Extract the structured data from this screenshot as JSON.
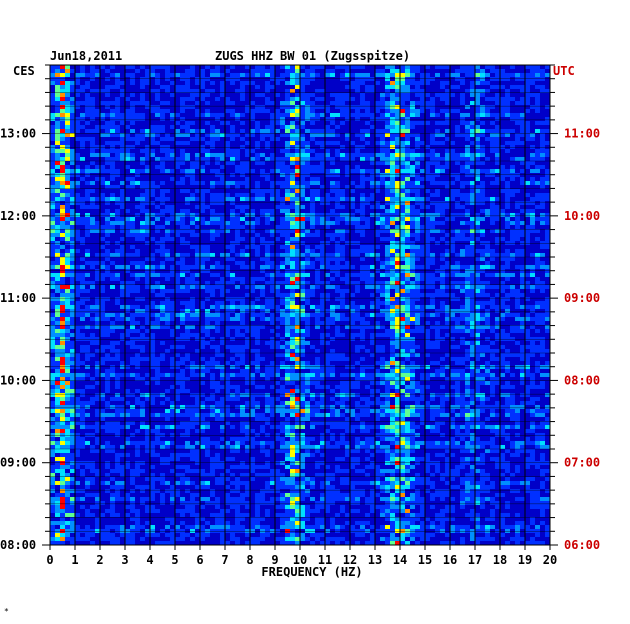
{
  "header": {
    "date": "Jun18,2011",
    "station": "ZUGS HHZ BW 01 (Zugsspitze)",
    "left_zone": "CES",
    "right_zone": "UTC"
  },
  "colors": {
    "background": "#0000c8",
    "grid": "#000000",
    "left_text": "#000000",
    "right_text": "#cc0000",
    "frame": "#000000"
  },
  "chart_data": {
    "type": "heatmap",
    "title": "ZUGS HHZ BW 01 (Zugsspitze)",
    "xlabel": "FREQUENCY (HZ)",
    "ylabel": "",
    "xlim": [
      0,
      20
    ],
    "x_ticks": [
      "0",
      "1",
      "2",
      "3",
      "4",
      "5",
      "6",
      "7",
      "8",
      "9",
      "10",
      "11",
      "12",
      "13",
      "14",
      "15",
      "16",
      "17",
      "18",
      "19",
      "20"
    ],
    "y_ticks_left": [
      "13:00",
      "12:00",
      "11:00",
      "10:00",
      "09:00",
      "08:00"
    ],
    "y_ticks_right": [
      "11:00",
      "10:00",
      "09:00",
      "08:00",
      "07:00",
      "06:00"
    ],
    "time_range_local": [
      "08:00",
      "13:50"
    ],
    "hot_bands_hz": [
      {
        "center": 0.5,
        "strength": 0.9
      },
      {
        "center": 9.8,
        "strength": 0.75
      },
      {
        "center": 13.8,
        "strength": 0.6
      },
      {
        "center": 14.3,
        "strength": 0.45
      },
      {
        "center": 17.0,
        "strength": 0.3
      }
    ],
    "grid": true
  }
}
